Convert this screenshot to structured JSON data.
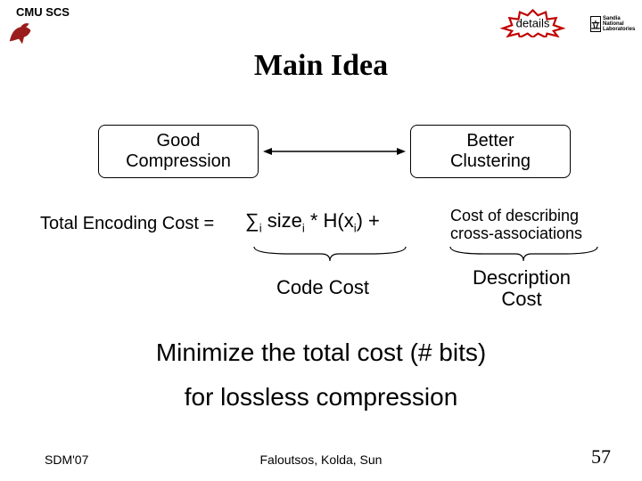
{
  "header": {
    "org": "CMU SCS",
    "details_label": "details",
    "details_text_color": "#000000",
    "starburst_fill": "#ffffff",
    "starburst_stroke": "#c00000",
    "sandia_symbol": "⽴",
    "sandia_text_line1": "Sandia",
    "sandia_text_line2": "National",
    "sandia_text_line3": "Laboratories",
    "griffin_color": "#9b1c1c"
  },
  "title": "Main Idea",
  "boxes": {
    "good_line1": "Good",
    "good_line2": "Compression",
    "better_line1": "Better",
    "better_line2": "Clustering",
    "border_color": "#000000",
    "border_radius": 8,
    "font_size": 20,
    "arrow_color": "#000000"
  },
  "equation": {
    "lhs": "Total Encoding Cost =",
    "sum_html": "∑<sub>i</sub> size<sub>i</sub> * H(x<sub>i</sub>)  +",
    "rhs_desc_line1": "Cost of describing",
    "rhs_desc_line2": "cross-associations",
    "code_cost_label": "Code Cost",
    "desc_cost_label_line1": "Description",
    "desc_cost_label_line2": "Cost",
    "brace_color": "#000000"
  },
  "body": {
    "minimize": "Minimize the total cost (# bits)",
    "lossless": "for lossless compression",
    "font_size": 28
  },
  "footer": {
    "left": "SDM'07",
    "center": "Faloutsos, Kolda, Sun",
    "page": "57"
  },
  "style": {
    "background": "#ffffff",
    "text_color": "#000000",
    "title_font": "Times New Roman"
  }
}
